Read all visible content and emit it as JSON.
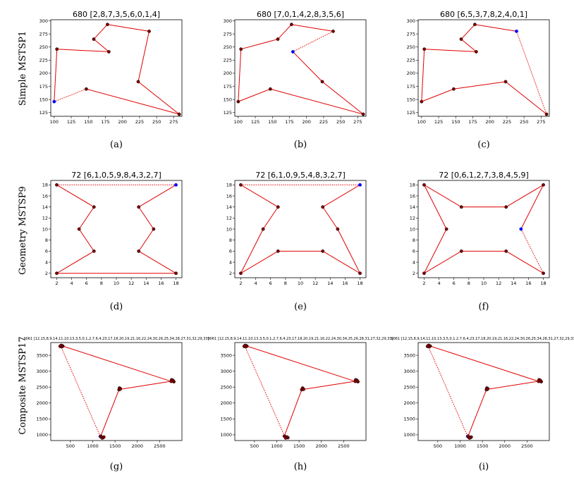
{
  "row_labels": [
    "Simple MSTSP1",
    "Geometry MSTSP9",
    "Composite MSTSP17"
  ],
  "colors": {
    "edge": "#e00000",
    "node": "#7a0000",
    "start_node": "#0000ff",
    "frame": "#000000"
  },
  "chart_data": [
    {
      "id": "a",
      "type": "line",
      "caption": "(a)",
      "title": "680 [2,8,7,3,5,6,0,1,4]",
      "xlim": [
        95,
        287
      ],
      "ylim": [
        118,
        302
      ],
      "xticks": [
        100,
        125,
        150,
        175,
        200,
        225,
        250,
        275
      ],
      "yticks": [
        125,
        150,
        175,
        200,
        225,
        250,
        275,
        300
      ],
      "x": [
        100,
        104,
        180,
        158,
        178,
        239,
        223,
        283,
        147
      ],
      "y": [
        146,
        246,
        241,
        265,
        293,
        280,
        184,
        122,
        170
      ],
      "start": 0,
      "dotted_closing_edge": true
    },
    {
      "id": "b",
      "type": "line",
      "caption": "(b)",
      "title": "680 [7,0,1,4,2,8,3,5,6]",
      "xlim": [
        95,
        287
      ],
      "ylim": [
        118,
        302
      ],
      "xticks": [
        100,
        125,
        150,
        175,
        200,
        225,
        250,
        275
      ],
      "yticks": [
        125,
        150,
        175,
        200,
        225,
        250,
        275,
        300
      ],
      "x": [
        180,
        223,
        283,
        147,
        100,
        104,
        158,
        178,
        239
      ],
      "y": [
        241,
        184,
        122,
        170,
        146,
        246,
        265,
        293,
        280
      ],
      "start": 0,
      "dotted_closing_edge": true
    },
    {
      "id": "c",
      "type": "line",
      "caption": "(c)",
      "title": "680 [6,5,3,7,8,2,4,0,1]",
      "xlim": [
        95,
        287
      ],
      "ylim": [
        118,
        302
      ],
      "xticks": [
        100,
        125,
        150,
        175,
        200,
        225,
        250,
        275
      ],
      "yticks": [
        125,
        150,
        175,
        200,
        225,
        250,
        275,
        300
      ],
      "x": [
        239,
        178,
        158,
        180,
        104,
        100,
        147,
        223,
        283
      ],
      "y": [
        280,
        293,
        265,
        241,
        246,
        146,
        170,
        184,
        122
      ],
      "start": 0,
      "dotted_closing_edge": true
    },
    {
      "id": "d",
      "type": "line",
      "caption": "(d)",
      "title": "72 [6,1,0,5,9,8,4,3,2,7]",
      "xlim": [
        1.2,
        18.8
      ],
      "ylim": [
        1.2,
        18.8
      ],
      "xticks": [
        2,
        4,
        6,
        8,
        10,
        12,
        14,
        16,
        18
      ],
      "yticks": [
        2,
        4,
        6,
        8,
        10,
        12,
        14,
        16,
        18
      ],
      "x": [
        18,
        13,
        15,
        13,
        18,
        2,
        7,
        5,
        7,
        2
      ],
      "y": [
        18,
        14,
        10,
        6,
        2,
        2,
        6,
        10,
        14,
        18
      ],
      "start": 0,
      "dotted_closing_edge": true
    },
    {
      "id": "e",
      "type": "line",
      "caption": "(e)",
      "title": "72 [6,1,0,9,5,4,8,3,2,7]",
      "xlim": [
        1.2,
        18.8
      ],
      "ylim": [
        1.2,
        18.8
      ],
      "xticks": [
        2,
        4,
        6,
        8,
        10,
        12,
        14,
        16,
        18
      ],
      "yticks": [
        2,
        4,
        6,
        8,
        10,
        12,
        14,
        16,
        18
      ],
      "x": [
        18,
        13,
        15,
        18,
        13,
        7,
        2,
        5,
        7,
        2
      ],
      "y": [
        18,
        14,
        10,
        2,
        6,
        6,
        2,
        10,
        14,
        18
      ],
      "start": 0,
      "dotted_closing_edge": true
    },
    {
      "id": "f",
      "type": "line",
      "caption": "(f)",
      "title": "72 [0,6,1,2,7,3,8,4,5,9]",
      "xlim": [
        1.2,
        18.8
      ],
      "ylim": [
        1.2,
        18.8
      ],
      "xticks": [
        2,
        4,
        6,
        8,
        10,
        12,
        14,
        16,
        18
      ],
      "yticks": [
        2,
        4,
        6,
        8,
        10,
        12,
        14,
        16,
        18
      ],
      "x": [
        15,
        18,
        13,
        7,
        2,
        5,
        2,
        7,
        13,
        18
      ],
      "y": [
        10,
        18,
        14,
        14,
        18,
        10,
        2,
        6,
        6,
        2
      ],
      "start": 0,
      "dotted_closing_edge": true
    },
    {
      "id": "g",
      "type": "line",
      "caption": "(g)",
      "title": "9061 [12,15,8,9,14,11,10,13,3,5,0,1,2,7,6,4,23,17,18,20,19,21,16,22,24,30,26,25,34,28,27,31,32,29,33]",
      "xlim": [
        60,
        3000
      ],
      "ylim": [
        820,
        3900
      ],
      "xticks": [
        500,
        1000,
        1500,
        2000,
        2500
      ],
      "yticks": [
        1000,
        1500,
        2000,
        2500,
        3000,
        3500
      ],
      "x": [
        1170,
        1200,
        1230,
        1250,
        1210,
        1180,
        1590,
        1620,
        1600,
        1610,
        2790,
        2820,
        2770,
        2800,
        2760,
        330,
        300,
        270,
        310,
        280
      ],
      "y": [
        950,
        920,
        910,
        930,
        900,
        960,
        2420,
        2450,
        2470,
        2430,
        2690,
        2670,
        2730,
        2710,
        2680,
        3790,
        3810,
        3780,
        3770,
        3800
      ],
      "start": 0,
      "dotted_closing_edge": true
    },
    {
      "id": "h",
      "type": "line",
      "caption": "(h)",
      "title": "9061 [12,15,8,9,14,11,10,13,3,5,0,1,2,7,6,4,23,17,18,20,19,21,16,22,24,30,34,25,26,28,31,27,32,29,33]",
      "xlim": [
        60,
        3000
      ],
      "ylim": [
        820,
        3900
      ],
      "xticks": [
        500,
        1000,
        1500,
        2000,
        2500
      ],
      "yticks": [
        1000,
        1500,
        2000,
        2500,
        3000,
        3500
      ],
      "x": [
        1180,
        1210,
        1250,
        1230,
        1200,
        1170,
        1560,
        1590,
        1580,
        1600,
        2790,
        2820,
        2770,
        2800,
        2760,
        330,
        300,
        270,
        310,
        280
      ],
      "y": [
        950,
        920,
        910,
        930,
        900,
        960,
        2420,
        2450,
        2470,
        2430,
        2690,
        2670,
        2730,
        2710,
        2680,
        3790,
        3810,
        3780,
        3770,
        3800
      ],
      "start": 0,
      "dotted_closing_edge": true
    },
    {
      "id": "i",
      "type": "line",
      "caption": "(i)",
      "title": "9061 [12,15,8,9,14,11,10,13,3,5,0,1,2,7,6,4,23,17,18,20,19,21,16,22,24,30,26,25,34,28,31,27,32,29,33]",
      "xlim": [
        60,
        3000
      ],
      "ylim": [
        820,
        3900
      ],
      "xticks": [
        500,
        1000,
        1500,
        2000,
        2500
      ],
      "yticks": [
        1000,
        1500,
        2000,
        2500,
        3000,
        3500
      ],
      "x": [
        1170,
        1200,
        1230,
        1250,
        1210,
        1180,
        1590,
        1620,
        1600,
        1610,
        2790,
        2820,
        2770,
        2800,
        2760,
        330,
        300,
        270,
        310,
        280
      ],
      "y": [
        950,
        920,
        910,
        930,
        900,
        960,
        2420,
        2450,
        2470,
        2430,
        2690,
        2670,
        2730,
        2710,
        2680,
        3790,
        3810,
        3780,
        3770,
        3800
      ],
      "start": 0,
      "dotted_closing_edge": true
    }
  ]
}
